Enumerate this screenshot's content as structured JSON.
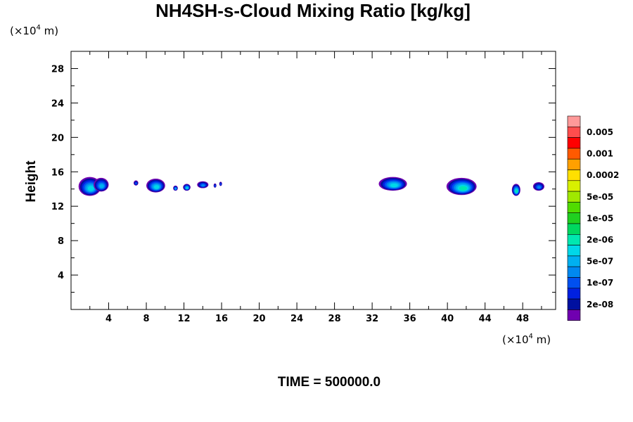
{
  "chart_data": {
    "type": "contour",
    "title": "NH4SH-s-Cloud Mixing Ratio [kg/kg]",
    "ylabel": "Height",
    "x_unit": {
      "prefix": "(×10",
      "exponent": "4",
      "suffix": " m)"
    },
    "y_unit": {
      "prefix": "(×10",
      "exponent": "4",
      "suffix": " m)"
    },
    "xlim": [
      0,
      51.5
    ],
    "ylim": [
      0,
      30
    ],
    "x_ticks": [
      4,
      8,
      12,
      16,
      20,
      24,
      28,
      32,
      36,
      40,
      44,
      48
    ],
    "x_minor_ticks": [
      2,
      6,
      10,
      14,
      18,
      22,
      26,
      30,
      34,
      38,
      42,
      46,
      50
    ],
    "y_ticks": [
      4,
      8,
      12,
      16,
      20,
      24,
      28
    ],
    "y_minor_ticks": [
      2,
      6,
      10,
      14,
      18,
      22,
      26
    ],
    "grid": false,
    "footer": "TIME = 500000.0",
    "colorbar": {
      "levels": [
        "",
        "0.005",
        "",
        "0.001",
        "",
        "0.0002",
        "",
        "5e-05",
        "",
        "1e-05",
        "",
        "2e-06",
        "",
        "5e-07",
        "",
        "1e-07",
        "",
        "2e-08",
        ""
      ],
      "colors": [
        "#ff9999",
        "#ff4d4d",
        "#ff0000",
        "#ff5a00",
        "#ffa000",
        "#ffe000",
        "#d8f000",
        "#a0e800",
        "#50dc00",
        "#20d020",
        "#00d860",
        "#00e8b0",
        "#00d8e8",
        "#00b0f0",
        "#0088f0",
        "#0050f0",
        "#0020e0",
        "#0010a0",
        "#7000b0"
      ]
    },
    "cloud_blobs": [
      {
        "x": 2.0,
        "y": 14.3,
        "rx": 1.2,
        "ry": 1.1,
        "level": 12
      },
      {
        "x": 3.2,
        "y": 14.5,
        "rx": 0.8,
        "ry": 0.8,
        "level": 13
      },
      {
        "x": 6.9,
        "y": 14.7,
        "rx": 0.25,
        "ry": 0.3,
        "level": 15
      },
      {
        "x": 9.0,
        "y": 14.4,
        "rx": 1.0,
        "ry": 0.8,
        "level": 12
      },
      {
        "x": 11.1,
        "y": 14.1,
        "rx": 0.25,
        "ry": 0.3,
        "level": 13
      },
      {
        "x": 12.3,
        "y": 14.2,
        "rx": 0.4,
        "ry": 0.4,
        "level": 12
      },
      {
        "x": 14.0,
        "y": 14.5,
        "rx": 0.6,
        "ry": 0.4,
        "level": 14
      },
      {
        "x": 15.3,
        "y": 14.4,
        "rx": 0.15,
        "ry": 0.25,
        "level": 15
      },
      {
        "x": 15.9,
        "y": 14.6,
        "rx": 0.15,
        "ry": 0.25,
        "level": 15
      },
      {
        "x": 34.2,
        "y": 14.6,
        "rx": 1.5,
        "ry": 0.8,
        "level": 12
      },
      {
        "x": 41.5,
        "y": 14.3,
        "rx": 1.6,
        "ry": 1.0,
        "level": 11
      },
      {
        "x": 47.3,
        "y": 13.9,
        "rx": 0.45,
        "ry": 0.7,
        "level": 11
      },
      {
        "x": 49.7,
        "y": 14.3,
        "rx": 0.6,
        "ry": 0.5,
        "level": 14
      }
    ]
  }
}
